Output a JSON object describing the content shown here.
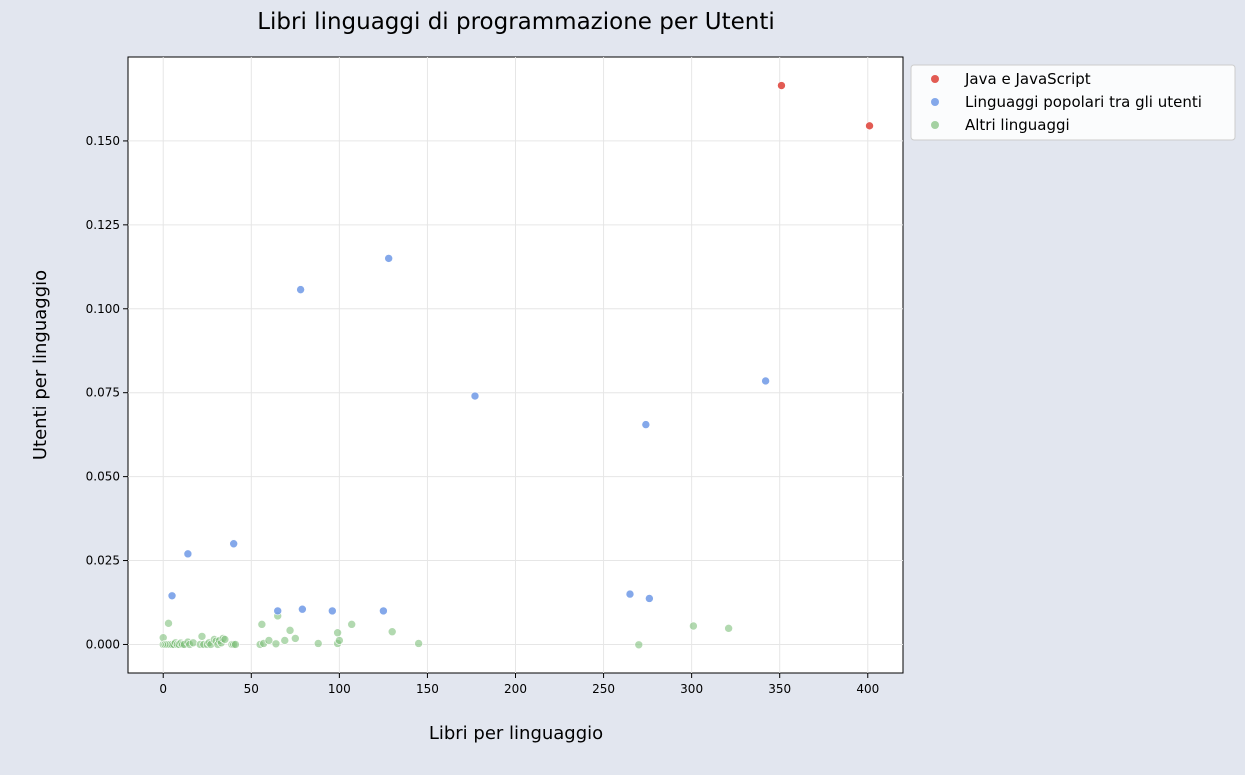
{
  "chart_data": {
    "type": "scatter",
    "title": "Libri linguaggi di programmazione per Utenti",
    "xlabel": "Libri per linguaggio",
    "ylabel": "Utenti per linguaggio",
    "xlim": [
      -20,
      420
    ],
    "ylim": [
      -0.0085,
      0.175
    ],
    "xticks": [
      0,
      50,
      100,
      150,
      200,
      250,
      300,
      350,
      400
    ],
    "yticks": [
      0.0,
      0.025,
      0.05,
      0.075,
      0.1,
      0.125,
      0.15
    ],
    "ytick_labels": [
      "0.000",
      "0.025",
      "0.050",
      "0.075",
      "0.100",
      "0.125",
      "0.150"
    ],
    "grid": true,
    "legend_position": "outside-top-right",
    "series": [
      {
        "name": "Java e JavaScript",
        "color": "#e0524a",
        "opacity": 0.95,
        "points": [
          [
            351,
            0.1665
          ],
          [
            401,
            0.1545
          ]
        ]
      },
      {
        "name": "Linguaggi popolari tra gli utenti",
        "color": "#6f99e6",
        "opacity": 0.85,
        "points": [
          [
            128,
            0.115
          ],
          [
            78,
            0.1057
          ],
          [
            177,
            0.074
          ],
          [
            342,
            0.0785
          ],
          [
            274,
            0.0655
          ],
          [
            40,
            0.03
          ],
          [
            14,
            0.027
          ],
          [
            5,
            0.0145
          ],
          [
            265,
            0.015
          ],
          [
            276,
            0.0137
          ],
          [
            65,
            0.01
          ],
          [
            79,
            0.0105
          ],
          [
            96,
            0.01
          ],
          [
            125,
            0.01
          ]
        ]
      },
      {
        "name": "Altri linguaggi",
        "color": "#7fbf7b",
        "opacity": 0.6,
        "points": [
          [
            0,
            0
          ],
          [
            0,
            0.002
          ],
          [
            1,
            0
          ],
          [
            2,
            0
          ],
          [
            3,
            0
          ],
          [
            3,
            0.0063
          ],
          [
            4,
            0
          ],
          [
            5,
            0
          ],
          [
            6,
            0
          ],
          [
            7,
            0.0005
          ],
          [
            8,
            0
          ],
          [
            9,
            0
          ],
          [
            10,
            0.0004
          ],
          [
            11,
            0
          ],
          [
            12,
            0
          ],
          [
            14,
            0.0007
          ],
          [
            15,
            0
          ],
          [
            17,
            0.0005
          ],
          [
            21,
            0
          ],
          [
            22,
            0.0024
          ],
          [
            23,
            0
          ],
          [
            25,
            0
          ],
          [
            26,
            0.0005
          ],
          [
            27,
            0
          ],
          [
            29,
            0.0015
          ],
          [
            30,
            0.001
          ],
          [
            31,
            0
          ],
          [
            32,
            0.0012
          ],
          [
            33,
            0.0005
          ],
          [
            34,
            0.0018
          ],
          [
            35,
            0.0015
          ],
          [
            39,
            0
          ],
          [
            40,
            0
          ],
          [
            41,
            0
          ],
          [
            55,
            0
          ],
          [
            56,
            0.006
          ],
          [
            57,
            0.0003
          ],
          [
            60,
            0.0012
          ],
          [
            64,
            0.0002
          ],
          [
            65,
            0.0085
          ],
          [
            69,
            0.0012
          ],
          [
            72,
            0.0042
          ],
          [
            75,
            0.0018
          ],
          [
            88,
            0.0003
          ],
          [
            99,
            0.0003
          ],
          [
            99,
            0.0035
          ],
          [
            100,
            0.0012
          ],
          [
            107,
            0.006
          ],
          [
            130,
            0.0038
          ],
          [
            145,
            0.0003
          ],
          [
            270,
            -0.0001
          ],
          [
            301,
            0.0055
          ],
          [
            321,
            0.0048
          ]
        ]
      }
    ]
  }
}
